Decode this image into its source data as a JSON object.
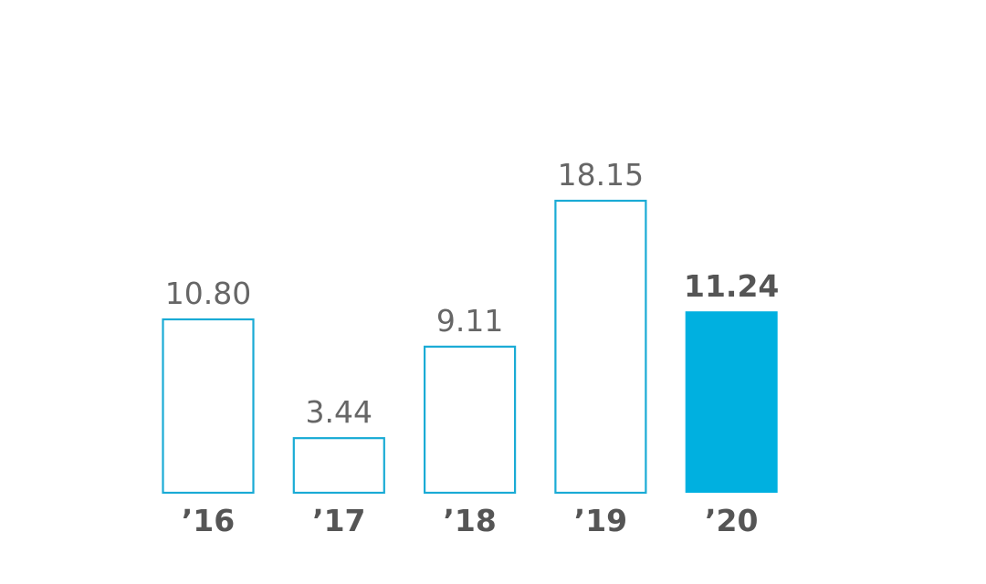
{
  "chart_data": {
    "type": "bar",
    "categories": [
      "’16",
      "’17",
      "’18",
      "’19",
      "’20"
    ],
    "values": [
      10.8,
      3.44,
      9.11,
      18.15,
      11.24
    ],
    "value_labels": [
      "10.80",
      "3.44",
      "9.11",
      "18.15",
      "11.24"
    ],
    "highlight_index": 4,
    "title": "",
    "xlabel": "",
    "ylabel": "",
    "ylim": [
      0,
      18.15
    ],
    "grid": false,
    "legend": "none"
  },
  "colors": {
    "accent": "#00b0e0",
    "outline": "#1aabd5",
    "value_text": "#666666",
    "highlight_text": "#555555",
    "tick_text": "#555555",
    "background": "#ffffff"
  }
}
